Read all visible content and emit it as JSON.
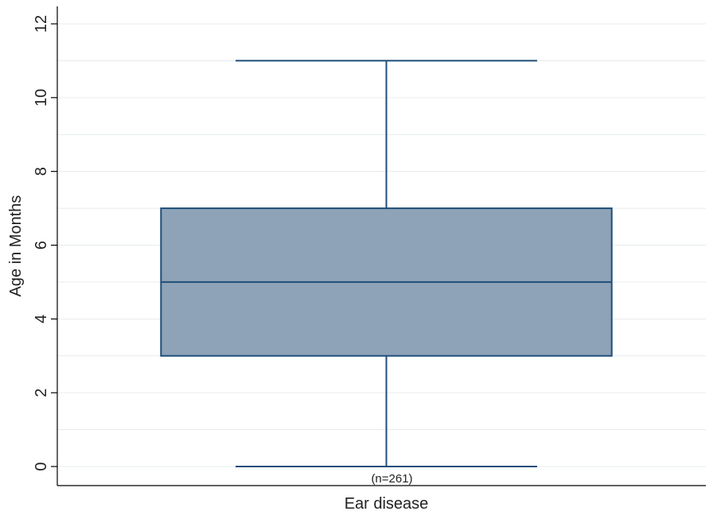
{
  "chart_data": {
    "type": "box",
    "title": "",
    "ylabel": "Age in Months",
    "xlabel": "Ear disease",
    "ylim": [
      0,
      12
    ],
    "yticks": [
      0,
      2,
      4,
      6,
      8,
      10,
      12
    ],
    "grid": true,
    "series": [
      {
        "category": "Ear disease",
        "min": 0,
        "q1": 3,
        "median": 5,
        "q3": 7,
        "max": 11,
        "n_label": "(n=261)"
      }
    ],
    "colors": {
      "box_fill": "#8ea3b7",
      "box_stroke": "#1f4e79",
      "grid": "#e6ecef",
      "axis": "#000000"
    }
  }
}
